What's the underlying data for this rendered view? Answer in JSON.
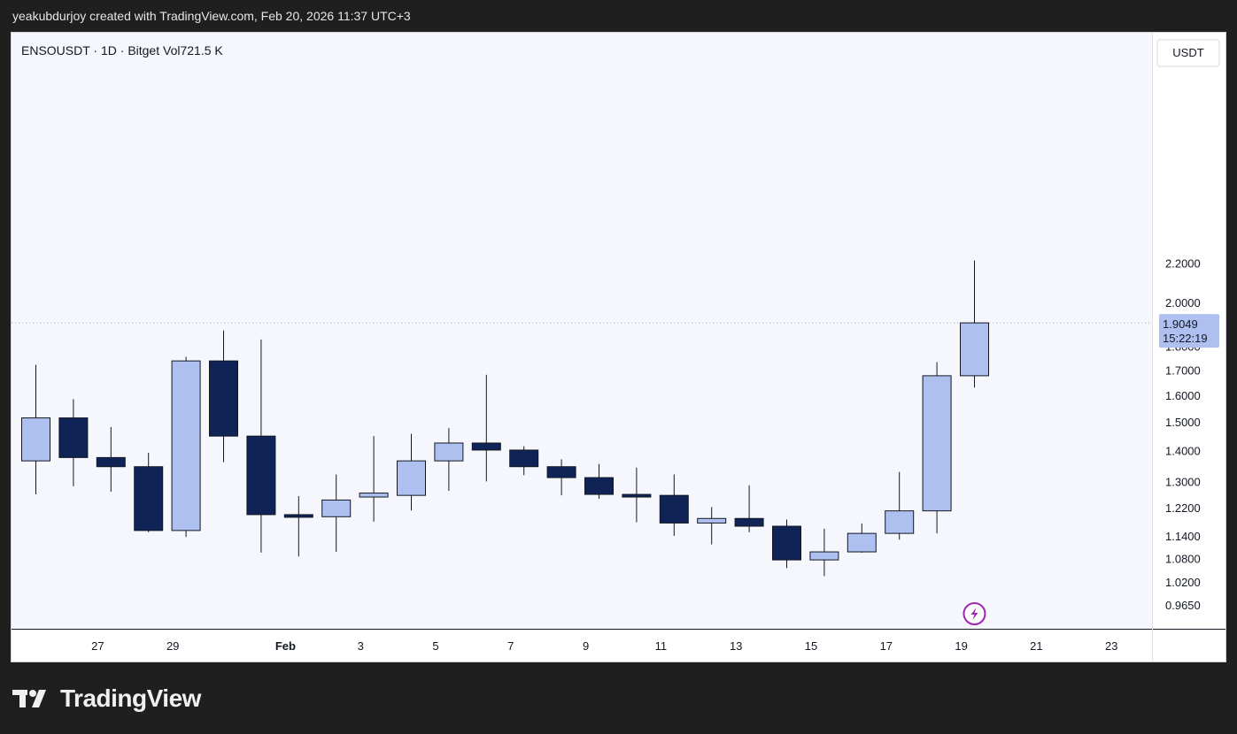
{
  "header": {
    "caption": "yeakubdurjoy created with TradingView.com, Feb 20, 2026 11:37 UTC+3"
  },
  "chart": {
    "legend": "ENSOUSDT · 1D · Bitget  Vol721.5 K",
    "unit": "USDT",
    "last_price": "1.9049",
    "countdown": "15:22:19"
  },
  "brand": {
    "name": "TradingView"
  },
  "colors": {
    "up": "#aec0f0",
    "down": "#0f2356",
    "background": "#f5f7fd",
    "price_tag": "#aec0f0"
  },
  "chart_data": {
    "type": "candlestick",
    "x_ticks": [
      "27",
      "29",
      "Feb",
      "3",
      "5",
      "7",
      "9",
      "11",
      "13",
      "15",
      "17",
      "19",
      "21",
      "23"
    ],
    "y_ticks": [
      "2.2000",
      "2.0000",
      "1.8000",
      "1.7000",
      "1.6000",
      "1.5000",
      "1.4000",
      "1.3000",
      "1.2200",
      "1.1400",
      "1.0800",
      "1.0200",
      "0.9650"
    ],
    "scale": "log",
    "candles": [
      {
        "date": "Jan 26",
        "open": 1.366,
        "high": 1.722,
        "low": 1.26,
        "close": 1.515
      },
      {
        "date": "Jan 27",
        "open": 1.515,
        "high": 1.585,
        "low": 1.285,
        "close": 1.377
      },
      {
        "date": "Jan 28",
        "open": 1.377,
        "high": 1.482,
        "low": 1.268,
        "close": 1.347
      },
      {
        "date": "Jan 29",
        "open": 1.347,
        "high": 1.393,
        "low": 1.15,
        "close": 1.155
      },
      {
        "date": "Jan 30",
        "open": 1.155,
        "high": 1.755,
        "low": 1.137,
        "close": 1.738
      },
      {
        "date": "Jan 31",
        "open": 1.738,
        "high": 1.87,
        "low": 1.362,
        "close": 1.45
      },
      {
        "date": "Feb 1",
        "open": 1.45,
        "high": 1.83,
        "low": 1.095,
        "close": 1.2
      },
      {
        "date": "Feb 2",
        "open": 1.2,
        "high": 1.255,
        "low": 1.085,
        "close": 1.194
      },
      {
        "date": "Feb 3",
        "open": 1.194,
        "high": 1.322,
        "low": 1.097,
        "close": 1.243
      },
      {
        "date": "Feb 4",
        "open": 1.252,
        "high": 1.45,
        "low": 1.18,
        "close": 1.264
      },
      {
        "date": "Feb 5",
        "open": 1.257,
        "high": 1.458,
        "low": 1.212,
        "close": 1.366
      },
      {
        "date": "Feb 6",
        "open": 1.366,
        "high": 1.478,
        "low": 1.271,
        "close": 1.426
      },
      {
        "date": "Feb 7",
        "open": 1.426,
        "high": 1.681,
        "low": 1.3,
        "close": 1.402
      },
      {
        "date": "Feb 8",
        "open": 1.402,
        "high": 1.415,
        "low": 1.32,
        "close": 1.347
      },
      {
        "date": "Feb 9",
        "open": 1.347,
        "high": 1.371,
        "low": 1.257,
        "close": 1.312
      },
      {
        "date": "Feb 10",
        "open": 1.312,
        "high": 1.356,
        "low": 1.247,
        "close": 1.26
      },
      {
        "date": "Feb 11",
        "open": 1.26,
        "high": 1.344,
        "low": 1.178,
        "close": 1.257
      },
      {
        "date": "Feb 12",
        "open": 1.257,
        "high": 1.322,
        "low": 1.14,
        "close": 1.176
      },
      {
        "date": "Feb 13",
        "open": 1.176,
        "high": 1.222,
        "low": 1.117,
        "close": 1.189
      },
      {
        "date": "Feb 14",
        "open": 1.189,
        "high": 1.288,
        "low": 1.15,
        "close": 1.167
      },
      {
        "date": "Feb 15",
        "open": 1.167,
        "high": 1.186,
        "low": 1.055,
        "close": 1.076
      },
      {
        "date": "Feb 16",
        "open": 1.076,
        "high": 1.16,
        "low": 1.035,
        "close": 1.097
      },
      {
        "date": "Feb 17",
        "open": 1.097,
        "high": 1.175,
        "low": 1.095,
        "close": 1.147
      },
      {
        "date": "Feb 18",
        "open": 1.147,
        "high": 1.33,
        "low": 1.13,
        "close": 1.211
      },
      {
        "date": "Feb 19",
        "open": 1.211,
        "high": 1.733,
        "low": 1.147,
        "close": 1.677
      },
      {
        "date": "Feb 20",
        "open": 1.677,
        "high": 2.214,
        "low": 1.63,
        "close": 1.9049
      }
    ]
  }
}
